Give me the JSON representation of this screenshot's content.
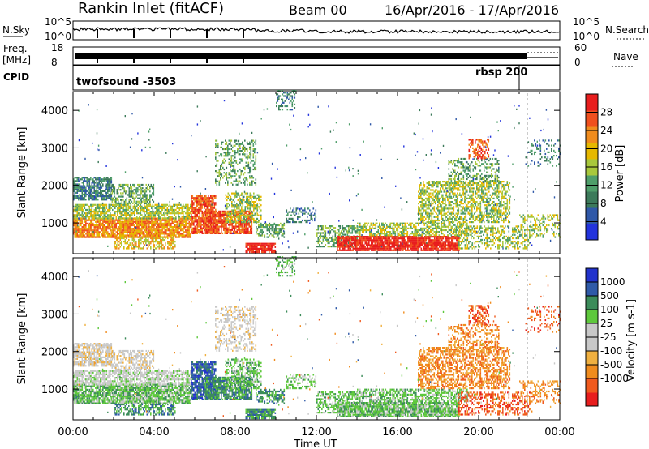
{
  "header": {
    "station": "Rankin Inlet (fitACF)",
    "beam": "Beam 00",
    "date_range": "16/Apr/2016 - 17/Apr/2016"
  },
  "top_panels": {
    "nsky_label": "N.Sky",
    "nsky_ticks": [
      "10^5",
      "10^0"
    ],
    "nsearch_label": "N.Search",
    "nsearch_ticks": [
      "10^5",
      "10^0"
    ],
    "freq_label_1": "Freq.",
    "freq_label_2": "[MHz]",
    "freq_ticks": [
      "18",
      "8"
    ],
    "nave_label": "Nave",
    "nave_ticks": [
      "60",
      "0"
    ],
    "cpid_label": "CPID",
    "cpid_1": "twofsound -3503",
    "cpid_2": "rbsp 200"
  },
  "colors": {
    "power_scale": [
      "#2233dd",
      "#2f58a8",
      "#3c7a5a",
      "#4f9e6a",
      "#a8c83c",
      "#e6b800",
      "#f08c1e",
      "#f0501e",
      "#e81e1e"
    ],
    "velocity_scale": [
      "#e81e1e",
      "#f05a1e",
      "#f08c1e",
      "#f0b040",
      "#c8c8c8",
      "#c8c8c8",
      "#5ec83c",
      "#3c8c5a",
      "#2f5aa8",
      "#2233cc"
    ]
  },
  "chart_data": [
    {
      "type": "heatmap",
      "title": "",
      "xlabel": "",
      "ylabel": "Slant Range [km]",
      "xlim": [
        "00:00",
        "00:00"
      ],
      "ylim": [
        180,
        4500
      ],
      "y_ticks": [
        "1000",
        "2000",
        "3000",
        "4000"
      ],
      "colorbar_label": "Power [dB]",
      "colorbar_ticks": [
        "4",
        "8",
        "12",
        "16",
        "20",
        "24",
        "28"
      ],
      "colorbar_range": [
        0,
        32
      ],
      "note": "Backscatter power vs. time and slant range"
    },
    {
      "type": "heatmap",
      "title": "",
      "xlabel": "Time UT",
      "ylabel": "Slant Range [km]",
      "x_ticks": [
        "00:00",
        "04:00",
        "08:00",
        "12:00",
        "16:00",
        "20:00",
        "00:00"
      ],
      "ylim": [
        180,
        4500
      ],
      "y_ticks": [
        "1000",
        "2000",
        "3000",
        "4000"
      ],
      "colorbar_label": "Velocity [m s-1]",
      "colorbar_ticks": [
        "1000",
        "500",
        "100",
        "25",
        "-25",
        "-100",
        "-500",
        "-1000"
      ]
    }
  ]
}
